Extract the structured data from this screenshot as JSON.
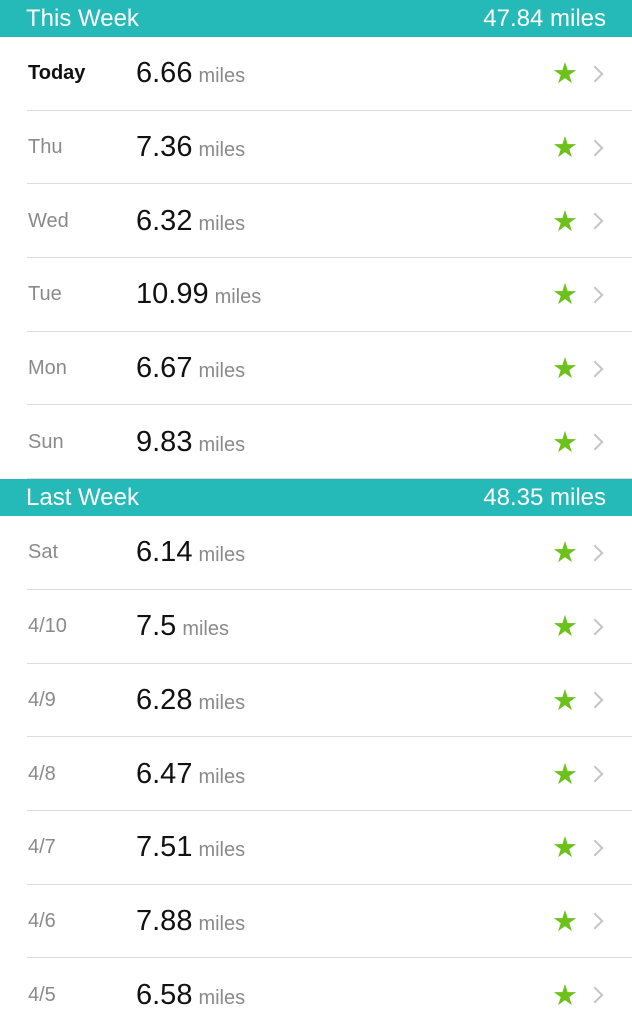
{
  "sections": [
    {
      "title": "This Week",
      "total": "47.84 miles",
      "rows": [
        {
          "day": "Today",
          "value": "6.66",
          "unit": "miles"
        },
        {
          "day": "Thu",
          "value": "7.36",
          "unit": "miles"
        },
        {
          "day": "Wed",
          "value": "6.32",
          "unit": "miles"
        },
        {
          "day": "Tue",
          "value": "10.99",
          "unit": "miles"
        },
        {
          "day": "Mon",
          "value": "6.67",
          "unit": "miles"
        },
        {
          "day": "Sun",
          "value": "9.83",
          "unit": "miles"
        }
      ]
    },
    {
      "title": "Last Week",
      "total": "48.35 miles",
      "rows": [
        {
          "day": "Sat",
          "value": "6.14",
          "unit": "miles"
        },
        {
          "day": "4/10",
          "value": "7.5",
          "unit": "miles"
        },
        {
          "day": "4/9",
          "value": "6.28",
          "unit": "miles"
        },
        {
          "day": "4/8",
          "value": "6.47",
          "unit": "miles"
        },
        {
          "day": "4/7",
          "value": "7.51",
          "unit": "miles"
        },
        {
          "day": "4/6",
          "value": "7.88",
          "unit": "miles"
        },
        {
          "day": "4/5",
          "value": "6.58",
          "unit": "miles"
        }
      ]
    }
  ],
  "colors": {
    "header": "#25b9b7",
    "star": "#6cc21b"
  },
  "icons": {
    "goal": "star-icon",
    "disclosure": "chevron-right-icon"
  }
}
